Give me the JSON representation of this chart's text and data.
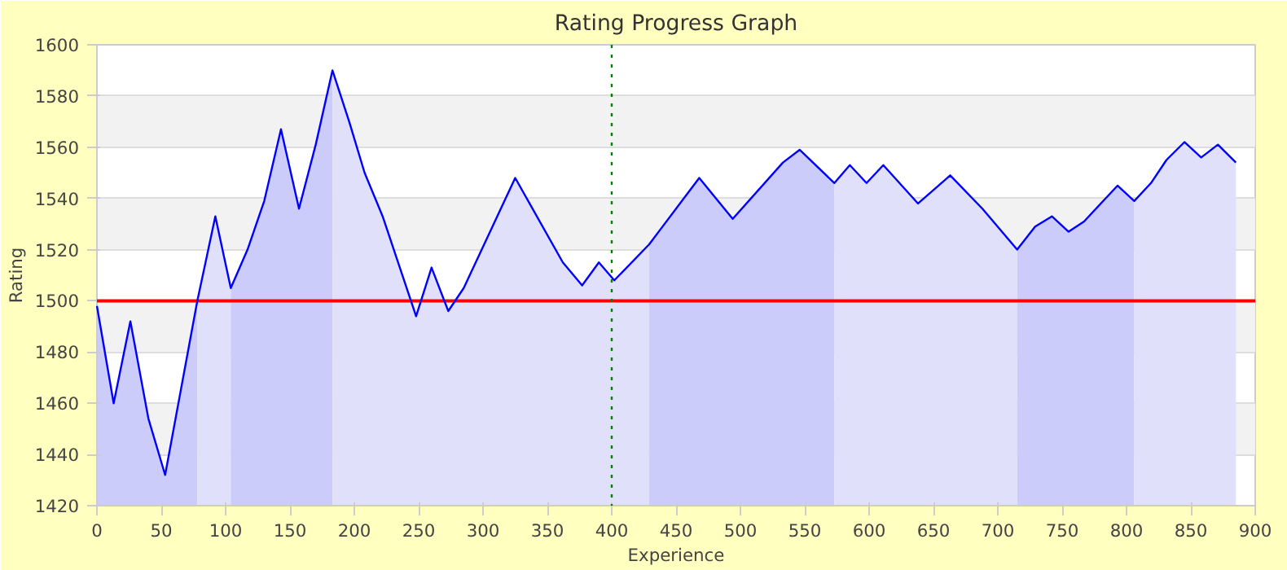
{
  "chart_data": {
    "type": "line",
    "title": "Rating Progress Graph",
    "xlabel": "Experience",
    "ylabel": "Rating",
    "xlim": [
      0,
      900
    ],
    "ylim": [
      1420,
      1600
    ],
    "xticks": [
      0,
      50,
      100,
      150,
      200,
      250,
      300,
      350,
      400,
      450,
      500,
      550,
      600,
      650,
      700,
      750,
      800,
      850,
      900
    ],
    "yticks": [
      1420,
      1440,
      1460,
      1480,
      1500,
      1520,
      1540,
      1560,
      1580,
      1600
    ],
    "grid": "y",
    "marker": "none",
    "line_style": "solid",
    "ref_lines": [
      {
        "axis": "y",
        "value": 1500,
        "color": "#ff0000",
        "line_style": "solid"
      },
      {
        "axis": "x",
        "value": 400,
        "color": "#008000",
        "line_style": "dotted"
      }
    ],
    "series": [
      {
        "type": "area",
        "color": "#ccccfa",
        "x": [
          0,
          13,
          26,
          40,
          53,
          78
        ],
        "values": [
          1498,
          1460,
          1492,
          1454,
          1432,
          1500
        ]
      },
      {
        "type": "area",
        "color": "#e0e0fa",
        "x": [
          78,
          92,
          104
        ],
        "values": [
          1500,
          1533,
          1505
        ]
      },
      {
        "type": "area",
        "color": "#ccccfa",
        "x": [
          104,
          117,
          130,
          143,
          157,
          170,
          183
        ],
        "values": [
          1505,
          1520,
          1539,
          1567,
          1536,
          1561,
          1590
        ]
      },
      {
        "type": "area",
        "color": "#e0e0fa",
        "x": [
          183,
          196,
          208,
          222,
          248,
          260,
          273,
          285,
          325,
          362,
          377,
          390,
          402,
          429
        ],
        "values": [
          1590,
          1570,
          1550,
          1533,
          1494,
          1513,
          1496,
          1505,
          1548,
          1515,
          1506,
          1515,
          1508,
          1522
        ]
      },
      {
        "type": "area",
        "color": "#ccccfa",
        "x": [
          429,
          438,
          468,
          494,
          533,
          546,
          573
        ],
        "values": [
          1522,
          1528,
          1548,
          1532,
          1554,
          1559,
          1546
        ]
      },
      {
        "type": "area",
        "color": "#e0e0fa",
        "x": [
          573,
          585,
          598,
          611,
          638,
          663,
          688,
          715
        ],
        "values": [
          1546,
          1553,
          1546,
          1553,
          1538,
          1549,
          1536,
          1520
        ]
      },
      {
        "type": "area",
        "color": "#ccccfa",
        "x": [
          715,
          729,
          742,
          755,
          767,
          793,
          806
        ],
        "values": [
          1520,
          1529,
          1533,
          1527,
          1531,
          1545,
          1539
        ]
      },
      {
        "type": "area",
        "color": "#e0e0fa",
        "x": [
          806,
          819,
          831,
          845,
          858,
          871,
          885
        ],
        "values": [
          1539,
          1546,
          1555,
          1562,
          1556,
          1561,
          1554
        ]
      },
      {
        "color": "#0000ff",
        "x": [
          0,
          13,
          26,
          40,
          53,
          78,
          92,
          104,
          117,
          130,
          143,
          157,
          170,
          183,
          196,
          208,
          222,
          248,
          260,
          273,
          285,
          325,
          362,
          377,
          390,
          402,
          429,
          438,
          468,
          494,
          533,
          546,
          573,
          585,
          598,
          611,
          638,
          663,
          688,
          715,
          729,
          742,
          755,
          767,
          793,
          806,
          819,
          831,
          845,
          858,
          871,
          885
        ],
        "values": [
          1498,
          1460,
          1492,
          1454,
          1432,
          1500,
          1533,
          1505,
          1520,
          1539,
          1567,
          1536,
          1561,
          1590,
          1570,
          1550,
          1533,
          1494,
          1513,
          1496,
          1505,
          1548,
          1515,
          1506,
          1515,
          1508,
          1522,
          1528,
          1548,
          1532,
          1554,
          1559,
          1546,
          1553,
          1546,
          1553,
          1538,
          1549,
          1536,
          1520,
          1529,
          1533,
          1527,
          1531,
          1545,
          1539,
          1546,
          1555,
          1562,
          1556,
          1561,
          1554
        ]
      }
    ]
  }
}
